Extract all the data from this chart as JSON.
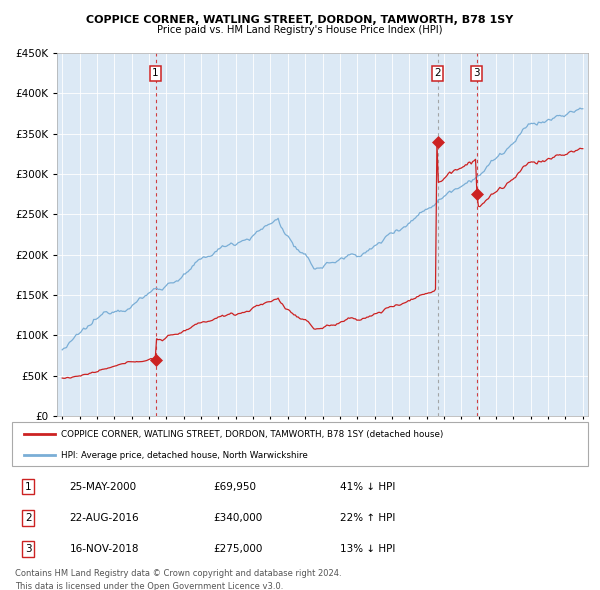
{
  "title1": "COPPICE CORNER, WATLING STREET, DORDON, TAMWORTH, B78 1SY",
  "title2": "Price paid vs. HM Land Registry's House Price Index (HPI)",
  "hpi_color": "#7aaed6",
  "price_color": "#cc2222",
  "plot_bg": "#dce9f5",
  "sale1_date_label": "25-MAY-2000",
  "sale1_price": 69950,
  "sale1_hpi_pct": "41% ↓ HPI",
  "sale2_date_label": "22-AUG-2016",
  "sale2_price": 340000,
  "sale2_hpi_pct": "22% ↑ HPI",
  "sale3_date_label": "16-NOV-2018",
  "sale3_price": 275000,
  "sale3_hpi_pct": "13% ↓ HPI",
  "legend1": "COPPICE CORNER, WATLING STREET, DORDON, TAMWORTH, B78 1SY (detached house)",
  "legend2": "HPI: Average price, detached house, North Warwickshire",
  "footer1": "Contains HM Land Registry data © Crown copyright and database right 2024.",
  "footer2": "This data is licensed under the Open Government Licence v3.0.",
  "ylim": [
    0,
    450000
  ],
  "yticks": [
    0,
    50000,
    100000,
    150000,
    200000,
    250000,
    300000,
    350000,
    400000,
    450000
  ],
  "sale1_year": 2000.38,
  "sale2_year": 2016.63,
  "sale3_year": 2018.88,
  "xmin": 1994.7,
  "xmax": 2025.3
}
